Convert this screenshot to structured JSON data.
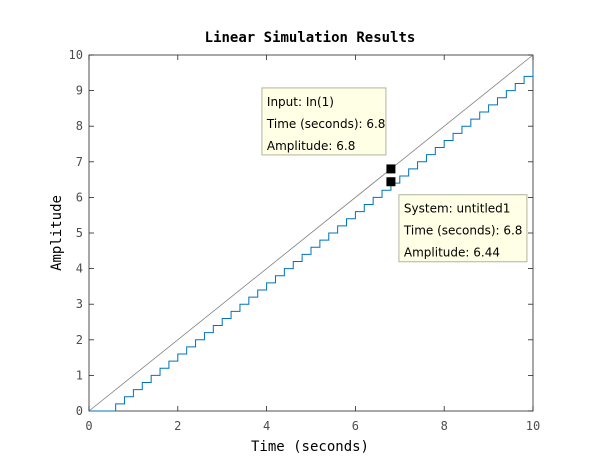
{
  "chart_data": {
    "type": "line",
    "title": "Linear Simulation Results",
    "xlabel": "Time (seconds)",
    "ylabel": "Amplitude",
    "xlim": [
      0,
      10
    ],
    "ylim": [
      0,
      10
    ],
    "xticks": [
      "0",
      "2",
      "4",
      "6",
      "8",
      "10"
    ],
    "yticks": [
      "0",
      "1",
      "2",
      "3",
      "4",
      "5",
      "6",
      "7",
      "8",
      "9",
      "10"
    ],
    "grid": false,
    "series": [
      {
        "key": "input",
        "x": [
          0,
          10
        ],
        "y": [
          0,
          10
        ],
        "color": "#808080"
      },
      {
        "key": "system",
        "style": "staircase",
        "step_dt": 0.2,
        "delay": 0.4,
        "x_range": [
          0,
          10
        ],
        "color": "#0072bd"
      }
    ],
    "datatips": [
      {
        "key": "input_tip",
        "x": 6.8,
        "y": 6.8,
        "lines": [
          "Input: In(1)",
          "Time (seconds): 6.8",
          "Amplitude: 6.8"
        ]
      },
      {
        "key": "system_tip",
        "x": 6.8,
        "y": 6.44,
        "lines": [
          "System: untitled1",
          "Time (seconds): 6.8",
          "Amplitude: 6.44"
        ]
      }
    ]
  },
  "colors": {
    "axis": "#262626",
    "tick_label": "#4d4d4d",
    "tip_fill": "#ffffe6",
    "tip_border": "#b3b3a0",
    "marker": "#000000"
  }
}
